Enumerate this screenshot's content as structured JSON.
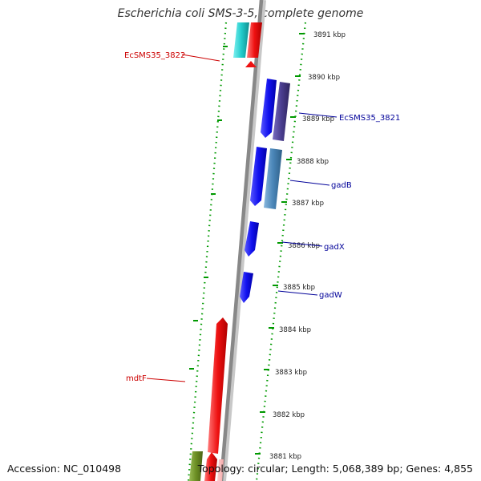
{
  "title": "Escherichia coli SMS-3-5, complete genome",
  "footer": {
    "accession": "Accession: NC_010498",
    "summary": "Topology: circular; Length: 5,068,389 bp; Genes: 4,855"
  },
  "ticks": [
    "3891 kbp",
    "3890 kbp",
    "3889 kbp",
    "3888 kbp",
    "3887 kbp",
    "3886 kbp",
    "3885 kbp",
    "3884 kbp",
    "3883 kbp",
    "3882 kbp",
    "3881 kbp"
  ],
  "gene_labels": {
    "ecsms35_3822": "EcSMS35_3822",
    "ecsms35_3821": "EcSMS35_3821",
    "gadB": "gadB",
    "gadX": "gadX",
    "gadW": "gadW",
    "mdtF": "mdtF"
  },
  "colors": {
    "forward_gene": "#ee1111",
    "reverse_gene": "#1111ee",
    "cyan_gene": "#22cccc",
    "olive_gene": "#6b8e23",
    "purple_gene": "#4a3d8f",
    "steelblue_gene": "#4a86b8",
    "label_red": "#cc0000",
    "label_blue": "#000099",
    "tick_green": "#009900",
    "backbone": "#888888"
  }
}
